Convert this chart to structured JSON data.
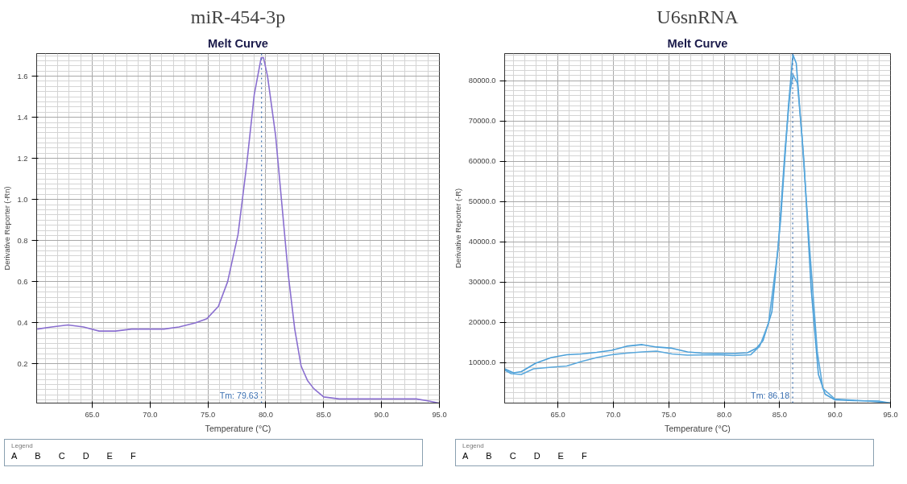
{
  "chart_data": [
    {
      "type": "line",
      "title": "miR-454-3p",
      "subtitle": "Melt Curve",
      "xlabel": "Temperature (°C)",
      "ylabel": "Derivative Reporter (-Rn)",
      "xlim": [
        60.2,
        95
      ],
      "ylim": [
        0.01,
        1.71
      ],
      "xticks": [
        {
          "value": 65,
          "label": "65.0"
        },
        {
          "value": 70,
          "label": "70.0"
        },
        {
          "value": 75,
          "label": "75.0"
        },
        {
          "value": 80,
          "label": "80.0"
        },
        {
          "value": 85,
          "label": "85.0"
        },
        {
          "value": 90,
          "label": "90.0"
        },
        {
          "value": 95,
          "label": "95.0"
        }
      ],
      "yticks": [
        0.2,
        0.4,
        0.6,
        0.8,
        {
          "value": 1.0,
          "label": "1.0"
        },
        1.2,
        1.4,
        1.6
      ],
      "grid": true,
      "marker": "none",
      "line_style": "solid",
      "annotations": [
        "Legend",
        "A",
        "B",
        "C",
        "D",
        "E",
        "F"
      ],
      "ref_lines": [
        {
          "axis": "x",
          "value": 79.63,
          "label": "Tm: 79.63",
          "color": "#3a6fb0",
          "line_style": "dotted"
        }
      ],
      "series": [
        {
          "color": "#8a6fd0",
          "x": [
            60.25,
            61.5,
            62.9,
            64.25,
            65.6,
            67.0,
            68.4,
            69.8,
            71.2,
            72.5,
            73.9,
            74.9,
            75.9,
            76.7,
            77.6,
            78.35,
            79.0,
            79.6,
            79.8,
            80.15,
            80.85,
            81.4,
            81.95,
            82.5,
            83.05,
            83.6,
            84.15,
            85.0,
            86.35,
            89.1,
            91.35,
            93.0,
            94.1,
            94.95
          ],
          "values": [
            0.37,
            0.38,
            0.39,
            0.38,
            0.36,
            0.36,
            0.37,
            0.37,
            0.37,
            0.38,
            0.4,
            0.42,
            0.48,
            0.6,
            0.83,
            1.17,
            1.51,
            1.69,
            1.69,
            1.6,
            1.31,
            0.97,
            0.63,
            0.37,
            0.19,
            0.12,
            0.08,
            0.04,
            0.03,
            0.03,
            0.03,
            0.03,
            0.02,
            0.01
          ]
        }
      ]
    },
    {
      "type": "line",
      "title": "U6snRNA",
      "subtitle": "Melt Curve",
      "xlabel": "Temperature (°C)",
      "ylabel": "Derivative Reporter (-R)",
      "xlim": [
        60.2,
        95
      ],
      "ylim": [
        0,
        86700
      ],
      "xticks": [
        {
          "value": 65,
          "label": "65.0"
        },
        {
          "value": 70,
          "label": "70.0"
        },
        {
          "value": 75,
          "label": "75.0"
        },
        {
          "value": 80,
          "label": "80.0"
        },
        {
          "value": 85,
          "label": "85.0"
        },
        {
          "value": 90,
          "label": "90.0"
        },
        {
          "value": 95,
          "label": "95.0"
        }
      ],
      "yticks": [
        {
          "value": 10000,
          "label": "10000.0"
        },
        {
          "value": 20000,
          "label": "20000.0"
        },
        {
          "value": 30000,
          "label": "30000.0"
        },
        {
          "value": 40000,
          "label": "40000.0"
        },
        {
          "value": 50000,
          "label": "50000.0"
        },
        {
          "value": 60000,
          "label": "60000.0"
        },
        {
          "value": 70000,
          "label": "70000.0"
        },
        {
          "value": 80000,
          "label": "80000.0"
        }
      ],
      "grid": true,
      "marker": "none",
      "line_style": "solid",
      "annotations": [
        "Legend",
        "A",
        "B",
        "C",
        "D",
        "E",
        "F"
      ],
      "ref_lines": [
        {
          "axis": "x",
          "value": 86.18,
          "label": "Tm: 86.18",
          "color": "#3a6fb0",
          "line_style": "dotted"
        }
      ],
      "series": [
        {
          "color": "#4a9fd8",
          "x": [
            60.2,
            61.0,
            61.7,
            63.0,
            64.4,
            65.8,
            67.1,
            68.5,
            69.85,
            71.2,
            72.6,
            73.9,
            75.3,
            76.7,
            78.0,
            80.8,
            82.1,
            82.9,
            83.5,
            84.3,
            85.1,
            85.8,
            86.2,
            86.5,
            87.2,
            87.85,
            88.5,
            89.1,
            90.0,
            91.7,
            93.9,
            95.0
          ],
          "values": [
            8500,
            7500,
            7800,
            9900,
            11300,
            12000,
            12200,
            12600,
            13100,
            14100,
            14500,
            13900,
            13600,
            12700,
            12400,
            12300,
            12500,
            13600,
            15500,
            22600,
            45700,
            73800,
            86400,
            84300,
            59700,
            28200,
            7100,
            2200,
            800,
            600,
            500,
            0
          ]
        },
        {
          "color": "#5aa8dc",
          "x": [
            60.2,
            60.8,
            61.7,
            62.8,
            64.4,
            65.8,
            67.1,
            68.5,
            69.85,
            71.2,
            72.6,
            73.9,
            75.3,
            76.7,
            79.4,
            80.8,
            82.4,
            83.2,
            84.0,
            84.85,
            85.5,
            85.95,
            86.2,
            86.6,
            87.0,
            87.7,
            88.4,
            88.9,
            90.0,
            93.0,
            95.0
          ],
          "values": [
            8200,
            7300,
            7100,
            8500,
            8900,
            9200,
            10300,
            11300,
            12000,
            12400,
            12700,
            12900,
            12200,
            11900,
            12000,
            11800,
            12000,
            14100,
            19800,
            38000,
            63200,
            77300,
            81500,
            79400,
            66700,
            38700,
            12700,
            3600,
            1000,
            500,
            0
          ]
        }
      ]
    }
  ]
}
